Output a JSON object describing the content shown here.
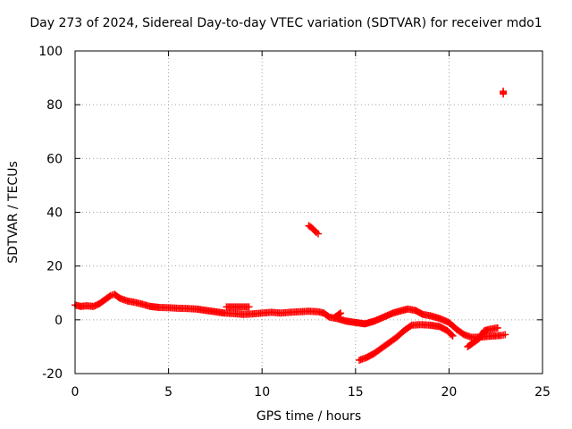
{
  "chart_data": {
    "type": "scatter",
    "title": "Day 273 of 2024, Sidereal Day-to-day VTEC variation (SDTVAR) for receiver mdo1",
    "xlabel": "GPS time / hours",
    "ylabel": "SDTVAR / TECUs",
    "xlim": [
      0,
      25
    ],
    "ylim": [
      -20,
      100
    ],
    "xticks": [
      "0",
      "5",
      "10",
      "15",
      "20",
      "25"
    ],
    "yticks": [
      "-20",
      "0",
      "20",
      "40",
      "60",
      "80",
      "100"
    ],
    "grid": true,
    "marker": "+",
    "color": "#ff0000",
    "series": [
      {
        "name": "main",
        "points": [
          [
            0.0,
            5.5
          ],
          [
            0.3,
            5.0
          ],
          [
            0.6,
            5.2
          ],
          [
            1.0,
            5.0
          ],
          [
            1.3,
            6.0
          ],
          [
            1.6,
            7.5
          ],
          [
            1.9,
            9.0
          ],
          [
            2.1,
            9.5
          ],
          [
            2.4,
            8.0
          ],
          [
            2.8,
            7.0
          ],
          [
            3.2,
            6.5
          ],
          [
            3.6,
            5.8
          ],
          [
            4.0,
            5.0
          ],
          [
            4.5,
            4.6
          ],
          [
            5.0,
            4.5
          ],
          [
            5.5,
            4.3
          ],
          [
            6.0,
            4.2
          ],
          [
            6.5,
            4.0
          ],
          [
            7.0,
            3.5
          ],
          [
            7.5,
            3.0
          ],
          [
            8.0,
            2.5
          ],
          [
            8.5,
            2.3
          ],
          [
            9.0,
            2.0
          ],
          [
            9.5,
            2.2
          ],
          [
            10.0,
            2.5
          ],
          [
            10.5,
            2.8
          ],
          [
            11.0,
            2.5
          ],
          [
            11.5,
            2.8
          ],
          [
            12.0,
            3.0
          ],
          [
            12.5,
            3.2
          ],
          [
            13.0,
            3.0
          ],
          [
            13.3,
            2.5
          ],
          [
            13.6,
            1.0
          ],
          [
            14.0,
            0.5
          ],
          [
            14.5,
            -0.5
          ],
          [
            15.0,
            -1.0
          ],
          [
            15.5,
            -1.5
          ],
          [
            16.0,
            -0.5
          ],
          [
            16.5,
            1.0
          ],
          [
            17.0,
            2.5
          ],
          [
            17.5,
            3.5
          ],
          [
            17.8,
            4.0
          ],
          [
            18.2,
            3.5
          ],
          [
            18.6,
            2.0
          ],
          [
            19.0,
            1.5
          ],
          [
            19.5,
            0.5
          ],
          [
            20.0,
            -1.0
          ],
          [
            20.4,
            -3.5
          ],
          [
            20.8,
            -5.5
          ],
          [
            21.2,
            -6.5
          ],
          [
            21.6,
            -6.5
          ],
          [
            22.0,
            -6.2
          ],
          [
            22.4,
            -6.0
          ],
          [
            22.8,
            -5.8
          ],
          [
            23.0,
            -5.5
          ]
        ]
      },
      {
        "name": "segment-8h",
        "points": [
          [
            8.1,
            4.8
          ],
          [
            8.5,
            4.8
          ],
          [
            8.9,
            4.8
          ],
          [
            9.3,
            4.8
          ]
        ]
      },
      {
        "name": "segment-14h",
        "points": [
          [
            13.9,
            1.0
          ],
          [
            14.2,
            2.5
          ]
        ]
      },
      {
        "name": "lower-branch",
        "points": [
          [
            15.2,
            -15.0
          ],
          [
            15.6,
            -14.0
          ],
          [
            16.0,
            -12.5
          ],
          [
            16.4,
            -10.5
          ],
          [
            16.8,
            -8.5
          ],
          [
            17.2,
            -6.5
          ],
          [
            17.6,
            -4.0
          ],
          [
            18.0,
            -2.0
          ],
          [
            18.5,
            -1.8
          ],
          [
            19.0,
            -2.0
          ],
          [
            19.5,
            -2.5
          ],
          [
            19.9,
            -4.0
          ],
          [
            20.2,
            -6.0
          ]
        ]
      },
      {
        "name": "late-branch",
        "points": [
          [
            21.0,
            -10.0
          ],
          [
            21.3,
            -8.5
          ],
          [
            21.6,
            -7.0
          ],
          [
            21.9,
            -4.0
          ],
          [
            22.2,
            -3.5
          ],
          [
            22.6,
            -3.0
          ]
        ]
      },
      {
        "name": "segment-12h",
        "points": [
          [
            12.5,
            35.0
          ],
          [
            12.7,
            34.0
          ],
          [
            12.9,
            32.5
          ],
          [
            13.0,
            32.0
          ]
        ]
      },
      {
        "name": "outlier-23h",
        "points": [
          [
            22.9,
            84.0
          ],
          [
            22.9,
            85.0
          ]
        ]
      }
    ]
  }
}
